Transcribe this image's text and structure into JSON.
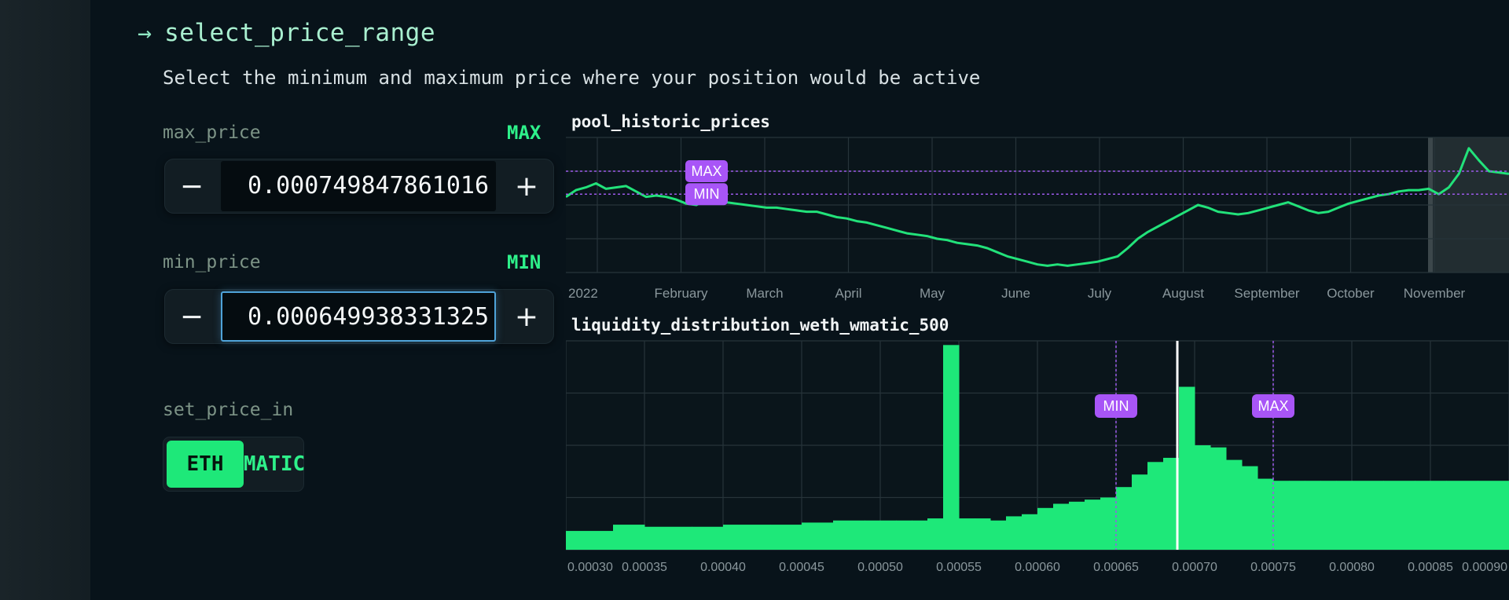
{
  "header": {
    "arrow_icon": "arrow-right-icon",
    "title": "select_price_range",
    "subtitle": "Select the minimum and maximum price where your position would be active"
  },
  "max_price": {
    "label": "max_price",
    "tag": "MAX",
    "value": "0.000749847861016",
    "minus": "−",
    "plus": "+"
  },
  "min_price": {
    "label": "min_price",
    "tag": "MIN",
    "value": "0.000649938331325",
    "minus": "−",
    "plus": "+"
  },
  "set_price_in": {
    "label": "set_price_in",
    "options": [
      "ETH",
      "MATIC"
    ],
    "selected": "ETH"
  },
  "colors": {
    "accent": "#1ee879",
    "line": "#22e27a",
    "marker": "#a855f7",
    "marker_line": "#9b59e8",
    "current_price": "#ffffff"
  },
  "chart_data": [
    {
      "type": "line",
      "title": "pool_historic_prices",
      "x_tick_labels": [
        "2022",
        "February",
        "March",
        "April",
        "May",
        "June",
        "July",
        "August",
        "September",
        "October",
        "November"
      ],
      "y_relative": [
        0.56,
        0.61,
        0.63,
        0.66,
        0.62,
        0.63,
        0.64,
        0.6,
        0.56,
        0.57,
        0.56,
        0.54,
        0.51,
        0.5,
        0.54,
        0.55,
        0.52,
        0.51,
        0.5,
        0.49,
        0.48,
        0.48,
        0.47,
        0.46,
        0.45,
        0.45,
        0.43,
        0.41,
        0.4,
        0.38,
        0.37,
        0.35,
        0.33,
        0.31,
        0.29,
        0.28,
        0.27,
        0.25,
        0.24,
        0.22,
        0.21,
        0.2,
        0.18,
        0.15,
        0.12,
        0.1,
        0.08,
        0.06,
        0.05,
        0.06,
        0.05,
        0.06,
        0.07,
        0.08,
        0.1,
        0.12,
        0.18,
        0.25,
        0.3,
        0.34,
        0.38,
        0.42,
        0.46,
        0.5,
        0.48,
        0.45,
        0.44,
        0.43,
        0.44,
        0.46,
        0.48,
        0.5,
        0.52,
        0.49,
        0.46,
        0.44,
        0.45,
        0.48,
        0.51,
        0.53,
        0.55,
        0.57,
        0.58,
        0.6,
        0.61,
        0.61,
        0.62,
        0.58,
        0.63,
        0.73,
        0.92,
        0.83,
        0.75,
        0.74,
        0.73
      ],
      "bands": [
        {
          "label": "MAX",
          "y_relative": 0.75
        },
        {
          "label": "MIN",
          "y_relative": 0.58
        }
      ],
      "highlight_region": "last portion (November)"
    },
    {
      "type": "bar",
      "title": "liquidity_distribution_weth_wmatic_500",
      "x_tick_labels": [
        "0.00030",
        "0.00035",
        "0.00040",
        "0.00045",
        "0.00050",
        "0.00055",
        "0.00060",
        "0.00065",
        "0.00070",
        "0.00075",
        "0.00080",
        "0.00085",
        "0.00090"
      ],
      "xlim": [
        0.0003,
        0.0009
      ],
      "bins": [
        [
          0.0003,
          0.09
        ],
        [
          0.00033,
          0.12
        ],
        [
          0.00035,
          0.11
        ],
        [
          0.00038,
          0.11
        ],
        [
          0.0004,
          0.12
        ],
        [
          0.00043,
          0.12
        ],
        [
          0.00045,
          0.13
        ],
        [
          0.00047,
          0.14
        ],
        [
          0.00049,
          0.14
        ],
        [
          0.00051,
          0.14
        ],
        [
          0.00052,
          0.14
        ],
        [
          0.00053,
          0.15
        ],
        [
          0.00054,
          0.98
        ],
        [
          0.00055,
          0.15
        ],
        [
          0.00056,
          0.15
        ],
        [
          0.00057,
          0.14
        ],
        [
          0.00058,
          0.16
        ],
        [
          0.00059,
          0.17
        ],
        [
          0.0006,
          0.2
        ],
        [
          0.00061,
          0.22
        ],
        [
          0.00062,
          0.23
        ],
        [
          0.00063,
          0.24
        ],
        [
          0.00064,
          0.25
        ],
        [
          0.00065,
          0.3
        ],
        [
          0.00066,
          0.36
        ],
        [
          0.00067,
          0.42
        ],
        [
          0.00068,
          0.44
        ],
        [
          0.00069,
          0.78
        ],
        [
          0.0007,
          0.5
        ],
        [
          0.00071,
          0.49
        ],
        [
          0.00072,
          0.43
        ],
        [
          0.00073,
          0.4
        ],
        [
          0.00074,
          0.34
        ],
        [
          0.00075,
          0.33
        ],
        [
          0.00076,
          0.33
        ],
        [
          0.00077,
          0.33
        ],
        [
          0.00078,
          0.33
        ],
        [
          0.00079,
          0.33
        ],
        [
          0.0008,
          0.33
        ],
        [
          0.00082,
          0.33
        ],
        [
          0.00084,
          0.33
        ],
        [
          0.00086,
          0.33
        ],
        [
          0.00088,
          0.33
        ],
        [
          0.0009,
          0.33
        ]
      ],
      "markers": [
        {
          "label": "MIN",
          "x": 0.00065
        },
        {
          "label": "MAX",
          "x": 0.00075
        }
      ],
      "current_price_x": 0.000689
    }
  ]
}
